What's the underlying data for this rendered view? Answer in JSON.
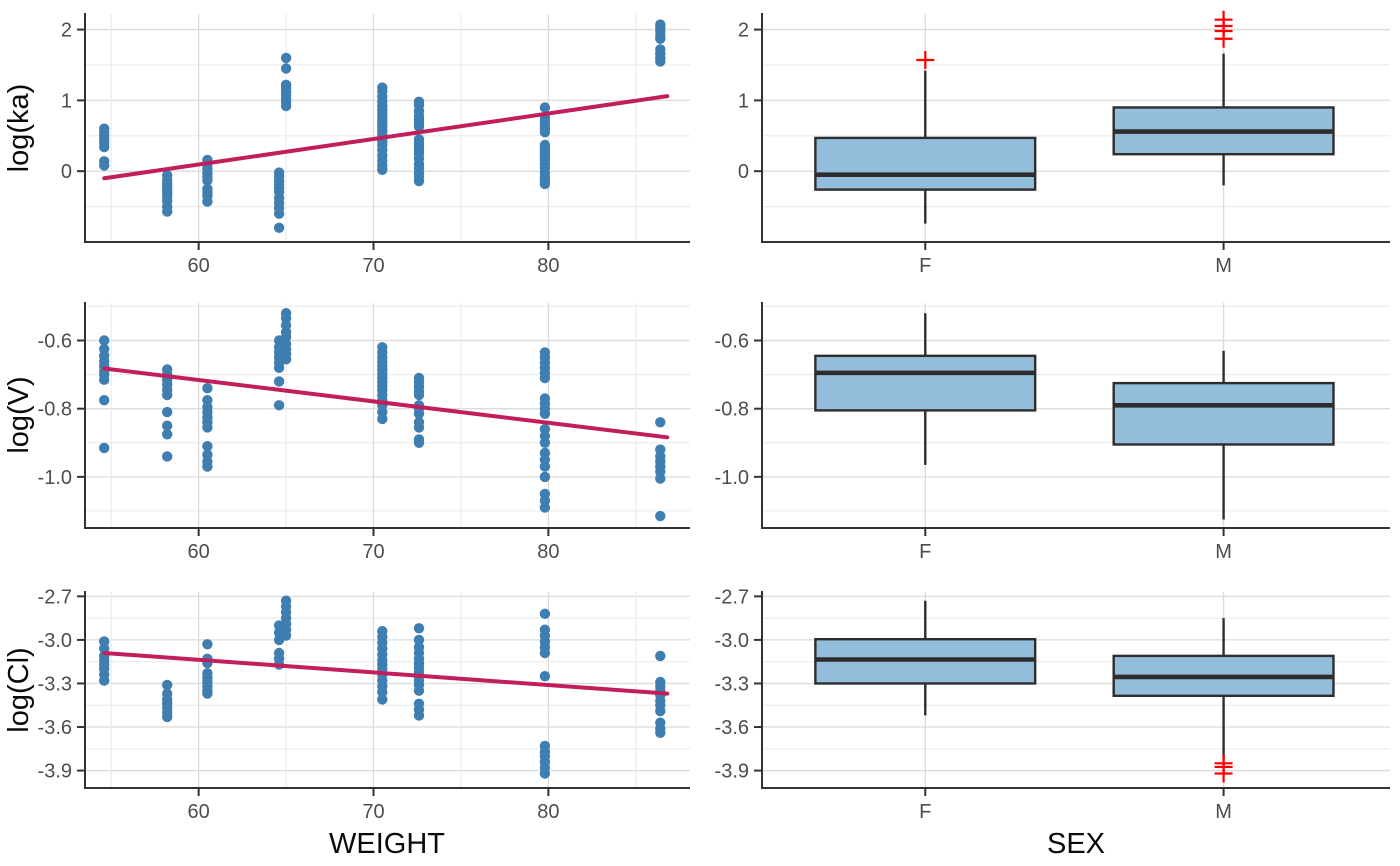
{
  "colors": {
    "point": "#3F7EB0",
    "regression_line": "#C21E5C",
    "box_fill": "#92BEDC",
    "box_stroke": "#2D2D2D",
    "outlier": "#FF0000",
    "grid_major": "#DBDBDB",
    "grid_minor": "#ECECEC",
    "axis_line": "#333333",
    "tick_mark": "#333333",
    "tick_label": "#4D4D4D",
    "axis_title": "#0A0A0A",
    "background": "#FFFFFF"
  },
  "axis_titles": {
    "x_left": "WEIGHT",
    "x_right": "SEX",
    "y_row1": "log(ka)",
    "y_row2": "log(V)",
    "y_row3": "log(Cl)"
  },
  "chart_data": [
    {
      "panel": "log-ka-vs-weight",
      "type": "scatter",
      "xlabel": "WEIGHT",
      "ylabel": "log(ka)",
      "xlim": [
        53.5,
        88.1
      ],
      "ylim": [
        -1.0,
        2.22
      ],
      "x_ticks": [
        {
          "value": 60,
          "label": "60"
        },
        {
          "value": 70,
          "label": "70"
        },
        {
          "value": 80,
          "label": "80"
        }
      ],
      "x_minor": [
        55,
        65,
        75,
        85
      ],
      "y_ticks": [
        {
          "value": 2,
          "label": "2"
        },
        {
          "value": 1,
          "label": "1"
        },
        {
          "value": 0,
          "label": "0"
        }
      ],
      "y_minor": [
        1.5,
        0.5,
        -0.5
      ],
      "clusters": [
        {
          "x": 54.6,
          "y": [
            0.6,
            0.55,
            0.5,
            0.45,
            0.4,
            0.34,
            0.14,
            0.08
          ]
        },
        {
          "x": 58.2,
          "y": [
            -0.06,
            -0.13,
            -0.18,
            -0.22,
            -0.27,
            -0.31,
            -0.36,
            -0.42,
            -0.5,
            -0.57
          ]
        },
        {
          "x": 60.5,
          "y": [
            0.16,
            0.1,
            0.04,
            -0.03,
            -0.08,
            -0.13,
            -0.25,
            -0.3,
            -0.35,
            -0.43
          ]
        },
        {
          "x": 64.6,
          "y": [
            -0.02,
            -0.08,
            -0.14,
            -0.19,
            -0.24,
            -0.29,
            -0.38,
            -0.45,
            -0.52,
            -0.6,
            -0.8
          ]
        },
        {
          "x": 65.0,
          "y": [
            1.6,
            1.45,
            1.22,
            1.17,
            1.12,
            1.07,
            1.02,
            0.97,
            0.92
          ]
        },
        {
          "x": 70.5,
          "y": [
            1.18,
            1.13,
            1.05,
            0.98,
            0.92,
            0.87,
            0.82,
            0.77,
            0.72,
            0.67,
            0.62,
            0.57,
            0.52,
            0.47,
            0.42,
            0.37,
            0.3,
            0.22,
            0.15,
            0.08,
            0.02
          ]
        },
        {
          "x": 72.6,
          "y": [
            0.98,
            0.93,
            0.85,
            0.78,
            0.73,
            0.68,
            0.63,
            0.45,
            0.4,
            0.35,
            0.3,
            0.25,
            0.18,
            0.1,
            0.04,
            -0.03,
            -0.08,
            -0.14
          ]
        },
        {
          "x": 79.8,
          "y": [
            0.9,
            0.76,
            0.7,
            0.65,
            0.6,
            0.55,
            0.37,
            0.32,
            0.28,
            0.24,
            0.2,
            0.16,
            0.1,
            0.05,
            -0.02,
            -0.08,
            -0.13,
            -0.18
          ]
        },
        {
          "x": 86.4,
          "y": [
            2.07,
            2.03,
            1.98,
            1.92,
            1.87,
            1.72,
            1.66,
            1.6,
            1.55
          ]
        }
      ],
      "regression": {
        "x": [
          54.6,
          86.8
        ],
        "y": [
          -0.1,
          1.06
        ]
      }
    },
    {
      "panel": "log-ka-by-sex",
      "type": "box",
      "xlabel": "SEX",
      "ylabel": "log(ka)",
      "ylim": [
        -1.0,
        2.22
      ],
      "y_ticks": [
        {
          "value": 2,
          "label": "2"
        },
        {
          "value": 1,
          "label": "1"
        },
        {
          "value": 0,
          "label": "0"
        }
      ],
      "y_minor": [
        1.5,
        0.5,
        -0.5
      ],
      "categories": [
        "F",
        "M"
      ],
      "boxes": [
        {
          "category": "F",
          "whisker_low": -0.74,
          "q1": -0.26,
          "median": -0.05,
          "q3": 0.47,
          "whisker_high": 1.42,
          "outliers": [
            1.57
          ]
        },
        {
          "category": "M",
          "whisker_low": -0.2,
          "q1": 0.24,
          "median": 0.56,
          "q3": 0.9,
          "whisker_high": 1.66,
          "outliers": [
            1.87,
            1.98,
            2.05,
            2.14
          ]
        }
      ]
    },
    {
      "panel": "log-v-vs-weight",
      "type": "scatter",
      "xlabel": "WEIGHT",
      "ylabel": "log(V)",
      "xlim": [
        53.5,
        88.1
      ],
      "ylim": [
        -1.15,
        -0.49
      ],
      "x_ticks": [
        {
          "value": 60,
          "label": "60"
        },
        {
          "value": 70,
          "label": "70"
        },
        {
          "value": 80,
          "label": "80"
        }
      ],
      "x_minor": [
        55,
        65,
        75,
        85
      ],
      "y_ticks": [
        {
          "value": -0.6,
          "label": "-0.6"
        },
        {
          "value": -0.8,
          "label": "-0.8"
        },
        {
          "value": -1.0,
          "label": "-1.0"
        }
      ],
      "y_minor": [
        -0.5,
        -0.7,
        -0.9,
        -1.1
      ],
      "clusters": [
        {
          "x": 54.6,
          "y": [
            -0.6,
            -0.625,
            -0.645,
            -0.66,
            -0.675,
            -0.69,
            -0.7,
            -0.715,
            -0.775,
            -0.915
          ]
        },
        {
          "x": 58.2,
          "y": [
            -0.685,
            -0.7,
            -0.715,
            -0.73,
            -0.745,
            -0.76,
            -0.81,
            -0.85,
            -0.875,
            -0.94
          ]
        },
        {
          "x": 60.5,
          "y": [
            -0.74,
            -0.775,
            -0.795,
            -0.81,
            -0.825,
            -0.84,
            -0.855,
            -0.91,
            -0.935,
            -0.955,
            -0.97
          ]
        },
        {
          "x": 64.6,
          "y": [
            -0.6,
            -0.62,
            -0.635,
            -0.65,
            -0.665,
            -0.68,
            -0.72,
            -0.79
          ]
        },
        {
          "x": 65.0,
          "y": [
            -0.52,
            -0.535,
            -0.555,
            -0.575,
            -0.59,
            -0.61,
            -0.625,
            -0.64,
            -0.655
          ]
        },
        {
          "x": 70.5,
          "y": [
            -0.62,
            -0.635,
            -0.65,
            -0.662,
            -0.674,
            -0.686,
            -0.698,
            -0.71,
            -0.722,
            -0.734,
            -0.746,
            -0.76,
            -0.775,
            -0.79,
            -0.81,
            -0.83
          ]
        },
        {
          "x": 72.6,
          "y": [
            -0.71,
            -0.722,
            -0.735,
            -0.748,
            -0.76,
            -0.79,
            -0.8,
            -0.815,
            -0.84,
            -0.855,
            -0.89,
            -0.9
          ]
        },
        {
          "x": 79.8,
          "y": [
            -0.635,
            -0.65,
            -0.665,
            -0.68,
            -0.695,
            -0.71,
            -0.77,
            -0.785,
            -0.8,
            -0.815,
            -0.86,
            -0.88,
            -0.9,
            -0.93,
            -0.95,
            -0.97,
            -1.0,
            -1.05,
            -1.07,
            -1.09
          ]
        },
        {
          "x": 86.4,
          "y": [
            -0.84,
            -0.92,
            -0.94,
            -0.955,
            -0.97,
            -0.985,
            -1.005,
            -1.115
          ]
        }
      ],
      "regression": {
        "x": [
          54.6,
          86.8
        ],
        "y": [
          -0.682,
          -0.884
        ]
      }
    },
    {
      "panel": "log-v-by-sex",
      "type": "box",
      "xlabel": "SEX",
      "ylabel": "log(V)",
      "ylim": [
        -1.15,
        -0.49
      ],
      "y_ticks": [
        {
          "value": -0.6,
          "label": "-0.6"
        },
        {
          "value": -0.8,
          "label": "-0.8"
        },
        {
          "value": -1.0,
          "label": "-1.0"
        }
      ],
      "y_minor": [
        -0.5,
        -0.7,
        -0.9,
        -1.1
      ],
      "categories": [
        "F",
        "M"
      ],
      "boxes": [
        {
          "category": "F",
          "whisker_low": -0.965,
          "q1": -0.805,
          "median": -0.695,
          "q3": -0.645,
          "whisker_high": -0.52,
          "outliers": []
        },
        {
          "category": "M",
          "whisker_low": -1.125,
          "q1": -0.905,
          "median": -0.79,
          "q3": -0.725,
          "whisker_high": -0.63,
          "outliers": []
        }
      ]
    },
    {
      "panel": "log-cl-vs-weight",
      "type": "scatter",
      "xlabel": "WEIGHT",
      "ylabel": "log(Cl)",
      "xlim": [
        53.5,
        88.1
      ],
      "ylim": [
        -4.02,
        -2.67
      ],
      "x_ticks": [
        {
          "value": 60,
          "label": "60"
        },
        {
          "value": 70,
          "label": "70"
        },
        {
          "value": 80,
          "label": "80"
        }
      ],
      "x_minor": [
        55,
        65,
        75,
        85
      ],
      "y_ticks": [
        {
          "value": -2.7,
          "label": "-2.7"
        },
        {
          "value": -3.0,
          "label": "-3.0"
        },
        {
          "value": -3.3,
          "label": "-3.3"
        },
        {
          "value": -3.6,
          "label": "-3.6"
        },
        {
          "value": -3.9,
          "label": "-3.9"
        }
      ],
      "y_minor": [
        -2.85,
        -3.15,
        -3.45,
        -3.75
      ],
      "clusters": [
        {
          "x": 54.6,
          "y": [
            -3.01,
            -3.06,
            -3.11,
            -3.14,
            -3.17,
            -3.2,
            -3.24,
            -3.28
          ]
        },
        {
          "x": 58.2,
          "y": [
            -3.31,
            -3.37,
            -3.41,
            -3.44,
            -3.47,
            -3.5,
            -3.53
          ]
        },
        {
          "x": 60.5,
          "y": [
            -3.03,
            -3.13,
            -3.16,
            -3.23,
            -3.26,
            -3.29,
            -3.32,
            -3.35,
            -3.37
          ]
        },
        {
          "x": 64.6,
          "y": [
            -2.9,
            -2.95,
            -3.0,
            -3.09,
            -3.13,
            -3.17
          ]
        },
        {
          "x": 65.0,
          "y": [
            -2.73,
            -2.77,
            -2.81,
            -2.85,
            -2.89,
            -2.93,
            -2.97
          ]
        },
        {
          "x": 70.5,
          "y": [
            -2.94,
            -2.98,
            -3.02,
            -3.06,
            -3.1,
            -3.14,
            -3.17,
            -3.2,
            -3.24,
            -3.28,
            -3.32,
            -3.36,
            -3.41
          ]
        },
        {
          "x": 72.6,
          "y": [
            -2.92,
            -3.0,
            -3.05,
            -3.09,
            -3.13,
            -3.16,
            -3.19,
            -3.22,
            -3.25,
            -3.28,
            -3.31,
            -3.35,
            -3.44,
            -3.48,
            -3.52
          ]
        },
        {
          "x": 79.8,
          "y": [
            -2.82,
            -2.93,
            -2.97,
            -3.01,
            -3.05,
            -3.09,
            -3.25,
            -3.73,
            -3.77,
            -3.8,
            -3.84,
            -3.88,
            -3.92
          ]
        },
        {
          "x": 86.4,
          "y": [
            -3.11,
            -3.29,
            -3.32,
            -3.35,
            -3.38,
            -3.42,
            -3.45,
            -3.49,
            -3.57,
            -3.61,
            -3.64
          ]
        }
      ],
      "regression": {
        "x": [
          54.6,
          86.8
        ],
        "y": [
          -3.09,
          -3.37
        ]
      }
    },
    {
      "panel": "log-cl-by-sex",
      "type": "box",
      "xlabel": "SEX",
      "ylabel": "log(Cl)",
      "ylim": [
        -4.02,
        -2.67
      ],
      "y_ticks": [
        {
          "value": -2.7,
          "label": "-2.7"
        },
        {
          "value": -3.0,
          "label": "-3.0"
        },
        {
          "value": -3.3,
          "label": "-3.3"
        },
        {
          "value": -3.6,
          "label": "-3.6"
        },
        {
          "value": -3.9,
          "label": "-3.9"
        }
      ],
      "y_minor": [
        -2.85,
        -3.15,
        -3.45,
        -3.75
      ],
      "categories": [
        "F",
        "M"
      ],
      "boxes": [
        {
          "category": "F",
          "whisker_low": -3.52,
          "q1": -3.3,
          "median": -3.135,
          "q3": -2.995,
          "whisker_high": -2.73,
          "outliers": []
        },
        {
          "category": "M",
          "whisker_low": -3.82,
          "q1": -3.385,
          "median": -3.255,
          "q3": -3.11,
          "whisker_high": -2.85,
          "outliers": [
            -3.85,
            -3.875,
            -3.92
          ]
        }
      ]
    }
  ]
}
